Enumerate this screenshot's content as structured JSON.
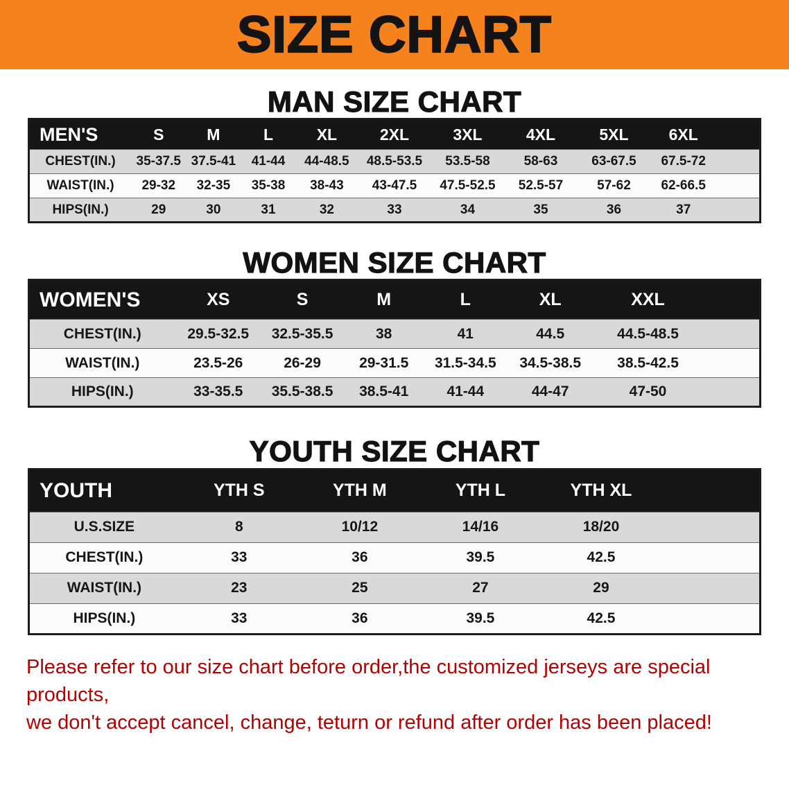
{
  "banner": {
    "title": "SIZE CHART"
  },
  "sections": [
    {
      "heading": "MAN SIZE CHART",
      "table": {
        "header": [
          "MEN'S",
          "S",
          "M",
          "L",
          "XL",
          "2XL",
          "3XL",
          "4XL",
          "5XL",
          "6XL"
        ],
        "rows": [
          [
            "CHEST(IN.)",
            "35-37.5",
            "37.5-41",
            "41-44",
            "44-48.5",
            "48.5-53.5",
            "53.5-58",
            "58-63",
            "63-67.5",
            "67.5-72"
          ],
          [
            "WAIST(IN.)",
            "29-32",
            "32-35",
            "35-38",
            "38-43",
            "43-47.5",
            "47.5-52.5",
            "52.5-57",
            "57-62",
            "62-66.5"
          ],
          [
            "HIPS(IN.)",
            "29",
            "30",
            "31",
            "32",
            "33",
            "34",
            "35",
            "36",
            "37"
          ]
        ]
      }
    },
    {
      "heading": "WOMEN SIZE CHART",
      "table": {
        "header": [
          "WOMEN'S",
          "XS",
          "S",
          "M",
          "L",
          "XL",
          "XXL"
        ],
        "rows": [
          [
            "CHEST(IN.)",
            "29.5-32.5",
            "32.5-35.5",
            "38",
            "41",
            "44.5",
            "44.5-48.5"
          ],
          [
            "WAIST(IN.)",
            "23.5-26",
            "26-29",
            "29-31.5",
            "31.5-34.5",
            "34.5-38.5",
            "38.5-42.5"
          ],
          [
            "HIPS(IN.)",
            "33-35.5",
            "35.5-38.5",
            "38.5-41",
            "41-44",
            "44-47",
            "47-50"
          ]
        ]
      }
    },
    {
      "heading": "YOUTH SIZE CHART",
      "table": {
        "header": [
          "YOUTH",
          "YTH S",
          "YTH M",
          "YTH L",
          "YTH XL"
        ],
        "rows": [
          [
            "U.S.SIZE",
            "8",
            "10/12",
            "14/16",
            "18/20"
          ],
          [
            "CHEST(IN.)",
            "33",
            "36",
            "39.5",
            "42.5"
          ],
          [
            "WAIST(IN.)",
            "23",
            "25",
            "27",
            "29"
          ],
          [
            "HIPS(IN.)",
            "33",
            "36",
            "39.5",
            "42.5"
          ]
        ]
      }
    }
  ],
  "disclaimer": {
    "line1": "Please refer to our size chart before order,the customized jerseys are special products,",
    "line2": "we don't accept cancel, change, teturn or refund after order has been placed!"
  },
  "colors": {
    "banner_bg": "#F6821E",
    "header_bg": "#151515",
    "row_stripe": "#D9D9D9",
    "row_alt": "#FCFCFC",
    "heading_color": "#121212",
    "disclaimer_text": "#B30000"
  }
}
